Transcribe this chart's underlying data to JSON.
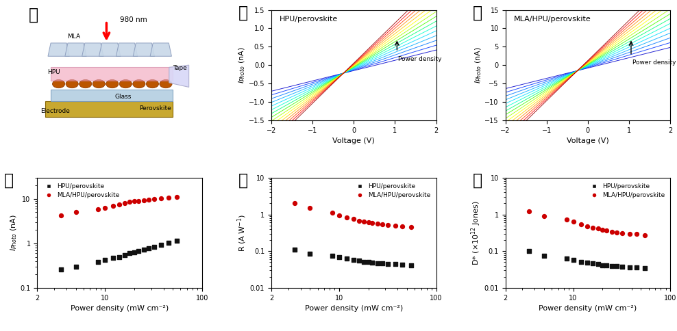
{
  "panel_labels": [
    "가",
    "나",
    "다",
    "라",
    "마",
    "바"
  ],
  "panel_label_fontsize": 17,
  "panel_label_fontweight": "bold",
  "na_title": "HPU/perovskite",
  "da_title": "MLA/HPU/perovskite",
  "na_ylim": [
    -1.5,
    1.5
  ],
  "da_ylim": [
    -15,
    15
  ],
  "iv_xlim": [
    -2,
    2
  ],
  "iv_xlabel": "Voltage (V)",
  "power_density_label": "Power density",
  "n_curves": 15,
  "iv_colors": [
    "#0000cc",
    "#0033ff",
    "#0077ff",
    "#00aaff",
    "#00ddff",
    "#00ffcc",
    "#00ff77",
    "#44ff00",
    "#aaff00",
    "#ffff00",
    "#ffcc00",
    "#ff8800",
    "#ff4400",
    "#ff0000",
    "#990000"
  ],
  "scatter_xlabel": "Power density (mW cm⁻²)",
  "ra_ylabel": "I_Photo (nA)",
  "ra_xlim": [
    2,
    100
  ],
  "ra_ylim": [
    0.1,
    30
  ],
  "ma_ylabel": "R (A W⁻¹)",
  "ma_xlim": [
    2,
    100
  ],
  "ma_ylim": [
    0.01,
    10
  ],
  "ba_ylabel": "D* (×10¹² Jones)",
  "ba_xlim": [
    2,
    100
  ],
  "ba_ylim": [
    0.01,
    10
  ],
  "hpu_color": "#111111",
  "mla_color": "#cc0000",
  "hpu_label": "HPU/perovskite",
  "mla_label": "MLA/HPU/perovskite",
  "hpu_power": [
    3.5,
    5.0,
    8.5,
    10.0,
    12.0,
    14.0,
    16.0,
    18.0,
    20.0,
    22.0,
    25.0,
    28.0,
    32.0,
    38.0,
    45.0,
    55.0
  ],
  "hpu_iphoto": [
    0.26,
    0.3,
    0.38,
    0.42,
    0.47,
    0.5,
    0.55,
    0.6,
    0.63,
    0.67,
    0.72,
    0.78,
    0.85,
    0.92,
    1.02,
    1.15
  ],
  "mla_iphoto": [
    4.2,
    5.0,
    5.8,
    6.3,
    7.0,
    7.5,
    8.0,
    8.5,
    8.8,
    9.0,
    9.3,
    9.6,
    9.9,
    10.2,
    10.5,
    11.0
  ],
  "hpu_R": [
    0.11,
    0.085,
    0.075,
    0.068,
    0.062,
    0.058,
    0.055,
    0.052,
    0.05,
    0.049,
    0.047,
    0.046,
    0.045,
    0.044,
    0.043,
    0.042
  ],
  "mla_R": [
    2.0,
    1.5,
    1.1,
    0.95,
    0.82,
    0.75,
    0.68,
    0.63,
    0.6,
    0.58,
    0.55,
    0.53,
    0.51,
    0.49,
    0.47,
    0.45
  ],
  "hpu_D": [
    0.1,
    0.075,
    0.062,
    0.057,
    0.052,
    0.049,
    0.046,
    0.044,
    0.042,
    0.041,
    0.04,
    0.039,
    0.038,
    0.037,
    0.036,
    0.035
  ],
  "mla_D": [
    1.2,
    0.9,
    0.72,
    0.63,
    0.54,
    0.48,
    0.44,
    0.41,
    0.38,
    0.36,
    0.34,
    0.32,
    0.31,
    0.3,
    0.29,
    0.27
  ],
  "bg_color": "#ffffff"
}
